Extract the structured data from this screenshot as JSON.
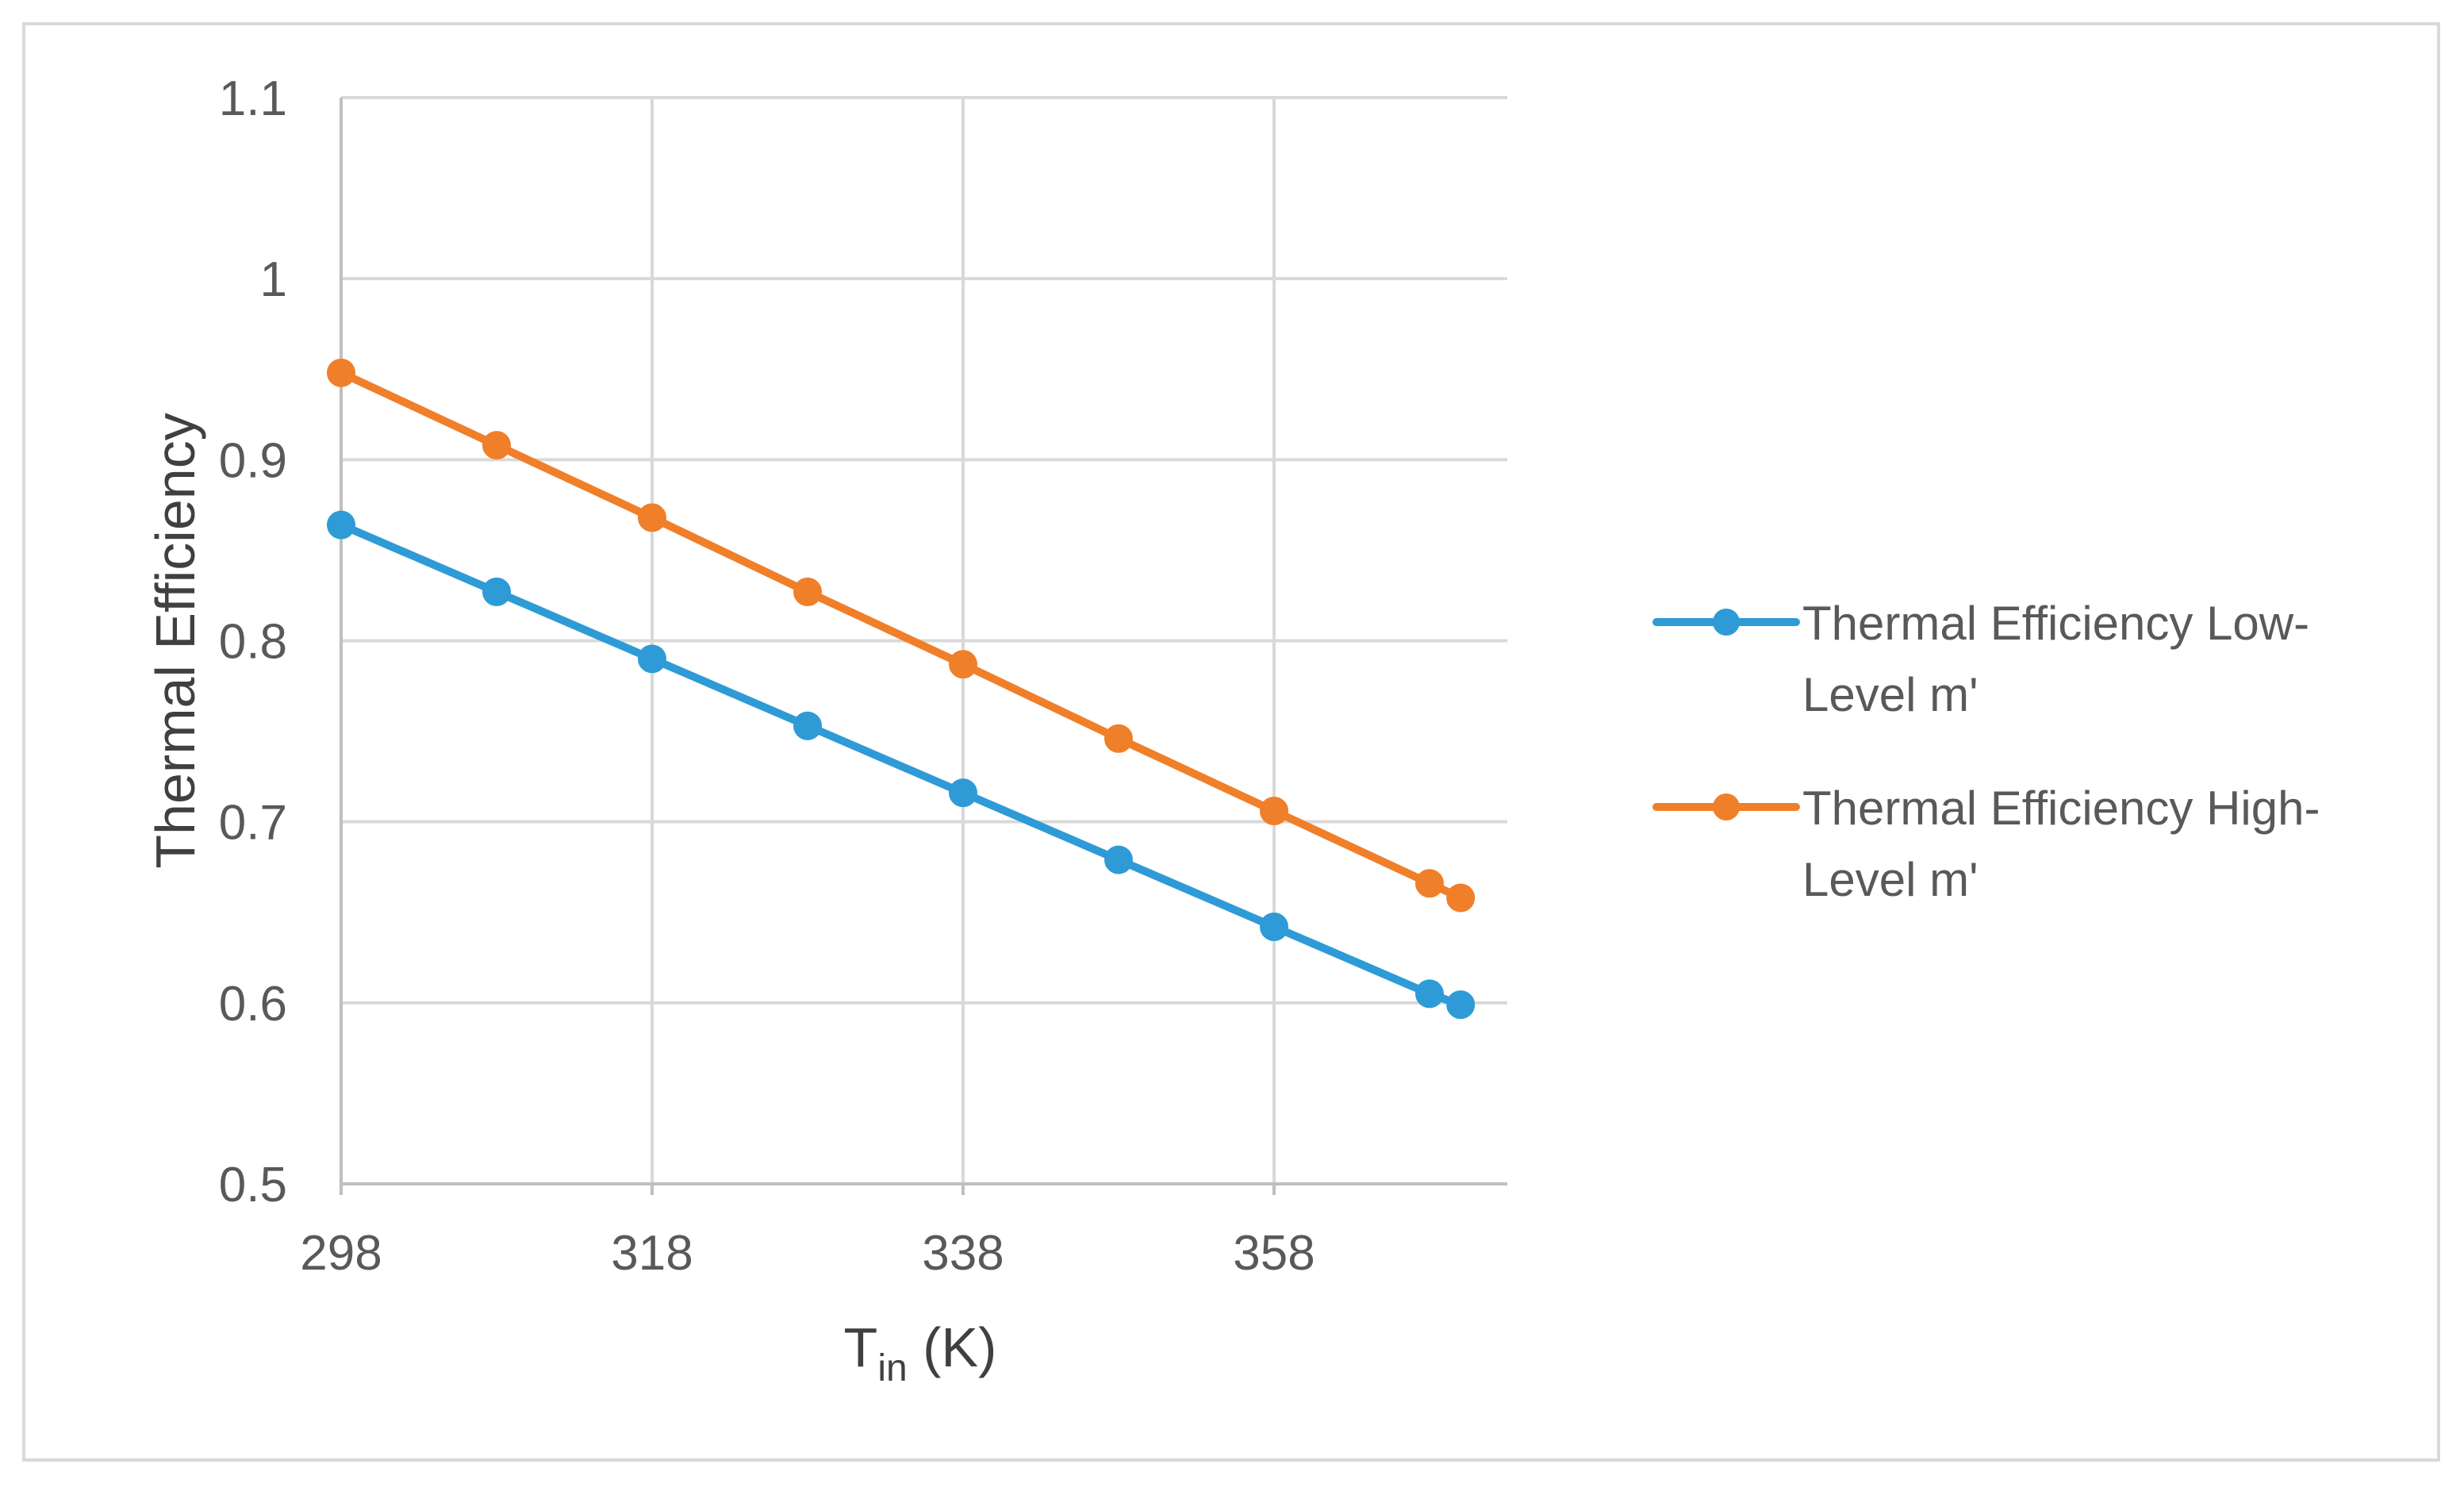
{
  "chart_data": {
    "type": "line",
    "title": "",
    "xlabel": {
      "main": "T",
      "sub": "in",
      "unit": " (K)"
    },
    "ylabel": "Thermal Efficiency",
    "xlim": [
      298,
      373
    ],
    "ylim": [
      0.5,
      1.1
    ],
    "xticks": [
      298,
      318,
      338,
      358
    ],
    "xtick_labels": [
      "298",
      "318",
      "338",
      "358"
    ],
    "yticks": [
      0.5,
      0.6,
      0.7,
      0.8,
      0.9,
      1.0,
      1.1
    ],
    "ytick_labels": [
      "0.5",
      "0.6",
      "0.7",
      "0.8",
      "0.9",
      "1",
      "1.1"
    ],
    "grid": true,
    "legend_position": "right",
    "series": [
      {
        "name": "Thermal Efficiency Low-Level m'",
        "legend_lines": [
          "Thermal Efficiency Low-",
          "Level m'"
        ],
        "color": "#2e9bd6",
        "x": [
          298,
          308,
          318,
          328,
          338,
          348,
          358,
          368,
          370
        ],
        "y": [
          0.864,
          0.827,
          0.79,
          0.753,
          0.716,
          0.679,
          0.642,
          0.605,
          0.599
        ]
      },
      {
        "name": "Thermal Efficiency High-Level m'",
        "legend_lines": [
          "Thermal Efficiency High-",
          "Level m'"
        ],
        "color": "#f07f2a",
        "x": [
          298,
          308,
          318,
          328,
          338,
          348,
          358,
          368,
          370
        ],
        "y": [
          0.948,
          0.908,
          0.868,
          0.827,
          0.787,
          0.746,
          0.706,
          0.666,
          0.658
        ]
      }
    ]
  }
}
